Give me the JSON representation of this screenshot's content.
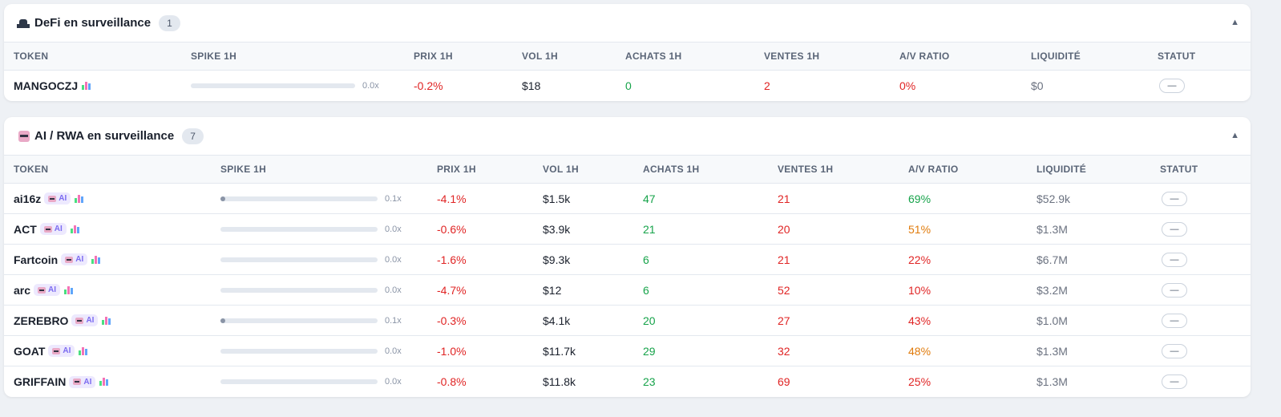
{
  "sections": [
    {
      "icon": "bank-icon",
      "title": "DeFi en surveillance",
      "count": "1",
      "columns": [
        "TOKEN",
        "SPIKE 1H",
        "PRIX 1H",
        "VOL 1H",
        "ACHATS 1H",
        "VENTES 1H",
        "A/V RATIO",
        "LIQUIDITÉ",
        "STATUT"
      ],
      "rows": [
        {
          "token": "MANGOCZJ",
          "badge": "",
          "spike": "0.0x",
          "spike_fill": 0,
          "prix": "-0.2%",
          "vol": "$18",
          "achats": "0",
          "ventes": "2",
          "ratio": "0%",
          "ratio_color": "red",
          "liq": "$0",
          "statut": "—"
        }
      ]
    },
    {
      "icon": "robot-icon",
      "title": "AI / RWA en surveillance",
      "count": "7",
      "columns": [
        "TOKEN",
        "SPIKE 1H",
        "PRIX 1H",
        "VOL 1H",
        "ACHATS 1H",
        "VENTES 1H",
        "A/V RATIO",
        "LIQUIDITÉ",
        "STATUT"
      ],
      "rows": [
        {
          "token": "ai16z",
          "badge": "AI",
          "spike": "0.1x",
          "spike_fill": 0.03,
          "prix": "-4.1%",
          "vol": "$1.5k",
          "achats": "47",
          "ventes": "21",
          "ratio": "69%",
          "ratio_color": "green",
          "liq": "$52.9k",
          "statut": "—"
        },
        {
          "token": "ACT",
          "badge": "AI",
          "spike": "0.0x",
          "spike_fill": 0,
          "prix": "-0.6%",
          "vol": "$3.9k",
          "achats": "21",
          "ventes": "20",
          "ratio": "51%",
          "ratio_color": "orange",
          "liq": "$1.3M",
          "statut": "—"
        },
        {
          "token": "Fartcoin",
          "badge": "AI",
          "spike": "0.0x",
          "spike_fill": 0,
          "prix": "-1.6%",
          "vol": "$9.3k",
          "achats": "6",
          "ventes": "21",
          "ratio": "22%",
          "ratio_color": "red",
          "liq": "$6.7M",
          "statut": "—"
        },
        {
          "token": "arc",
          "badge": "AI",
          "spike": "0.0x",
          "spike_fill": 0,
          "prix": "-4.7%",
          "vol": "$12",
          "achats": "6",
          "ventes": "52",
          "ratio": "10%",
          "ratio_color": "red",
          "liq": "$3.2M",
          "statut": "—"
        },
        {
          "token": "ZEREBRO",
          "badge": "AI",
          "spike": "0.1x",
          "spike_fill": 0.03,
          "prix": "-0.3%",
          "vol": "$4.1k",
          "achats": "20",
          "ventes": "27",
          "ratio": "43%",
          "ratio_color": "red",
          "liq": "$1.0M",
          "statut": "—"
        },
        {
          "token": "GOAT",
          "badge": "AI",
          "spike": "0.0x",
          "spike_fill": 0,
          "prix": "-1.0%",
          "vol": "$11.7k",
          "achats": "29",
          "ventes": "32",
          "ratio": "48%",
          "ratio_color": "orange",
          "liq": "$1.3M",
          "statut": "—"
        },
        {
          "token": "GRIFFAIN",
          "badge": "AI",
          "spike": "0.0x",
          "spike_fill": 0,
          "prix": "-0.8%",
          "vol": "$11.8k",
          "achats": "23",
          "ventes": "69",
          "ratio": "25%",
          "ratio_color": "red",
          "liq": "$1.3M",
          "statut": "—"
        }
      ]
    }
  ],
  "colors": {
    "red": "#e02424",
    "green": "#16a34a",
    "orange": "#e07b0c"
  }
}
